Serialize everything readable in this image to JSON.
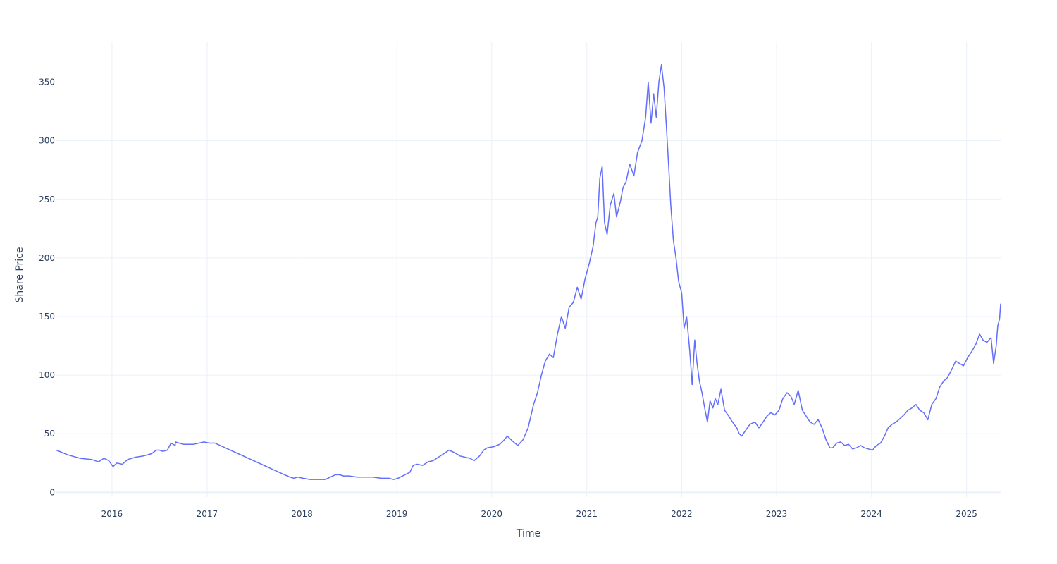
{
  "colors": {
    "line": "#636efa",
    "grid": "#ebf0f8",
    "text": "#2a3f5f"
  },
  "chart_data": {
    "type": "line",
    "title": "",
    "xlabel": "Time",
    "ylabel": "Share Price",
    "grid": true,
    "legend": "none",
    "xlim": [
      "2015-06-01",
      "2025-05-12"
    ],
    "ylim": [
      -4,
      384
    ],
    "x_ticks": [
      "2016",
      "2017",
      "2018",
      "2019",
      "2020",
      "2021",
      "2022",
      "2023",
      "2024",
      "2025"
    ],
    "y_ticks": [
      "0",
      "50",
      "100",
      "150",
      "200",
      "250",
      "300",
      "350"
    ],
    "series": [
      {
        "x": [
          "2015-06-01",
          "2015-07-15",
          "2015-09-01",
          "2015-10-15",
          "2015-11-10",
          "2015-12-01",
          "2015-12-20",
          "2016-01-05",
          "2016-01-20",
          "2016-02-10",
          "2016-03-01",
          "2016-04-01",
          "2016-05-01",
          "2016-06-01",
          "2016-06-20",
          "2016-07-01",
          "2016-07-15",
          "2016-08-01",
          "2016-08-15",
          "2016-08-31",
          "2016-09-01",
          "2016-09-15",
          "2016-10-01",
          "2016-10-20",
          "2016-11-10",
          "2016-12-01",
          "2016-12-20",
          "2017-01-10",
          "2017-02-01",
          "2017-02-10",
          "2017-10-26",
          "2017-11-05",
          "2017-11-15",
          "2017-12-01",
          "2017-12-15",
          "2018-01-05",
          "2018-02-01",
          "2018-03-01",
          "2018-04-01",
          "2018-04-20",
          "2018-05-10",
          "2018-05-25",
          "2018-06-10",
          "2018-07-01",
          "2018-08-01",
          "2018-09-01",
          "2018-10-01",
          "2018-11-01",
          "2018-12-01",
          "2018-12-20",
          "2019-01-05",
          "2019-02-01",
          "2019-02-20",
          "2019-03-05",
          "2019-03-20",
          "2019-04-10",
          "2019-05-01",
          "2019-05-20",
          "2019-06-10",
          "2019-07-01",
          "2019-07-20",
          "2019-08-10",
          "2019-09-01",
          "2019-09-20",
          "2019-10-10",
          "2019-10-25",
          "2019-11-15",
          "2019-12-01",
          "2019-12-15",
          "2020-01-10",
          "2020-02-01",
          "2020-02-15",
          "2020-03-01",
          "2020-03-20",
          "2020-04-10",
          "2020-05-01",
          "2020-05-20",
          "2020-06-10",
          "2020-06-25",
          "2020-07-10",
          "2020-07-25",
          "2020-08-10",
          "2020-08-25",
          "2020-09-10",
          "2020-09-25",
          "2020-10-10",
          "2020-10-25",
          "2020-11-10",
          "2020-11-25",
          "2020-12-10",
          "2020-12-25",
          "2021-01-10",
          "2021-01-25",
          "2021-02-05",
          "2021-02-12",
          "2021-02-20",
          "2021-03-01",
          "2021-03-10",
          "2021-03-20",
          "2021-04-01",
          "2021-04-15",
          "2021-04-25",
          "2021-05-10",
          "2021-05-20",
          "2021-06-01",
          "2021-06-15",
          "2021-07-01",
          "2021-07-15",
          "2021-08-01",
          "2021-08-15",
          "2021-08-25",
          "2021-09-05",
          "2021-09-15",
          "2021-09-25",
          "2021-10-05",
          "2021-10-15",
          "2021-10-20",
          "2021-10-25",
          "2021-11-01",
          "2021-11-10",
          "2021-11-20",
          "2021-11-30",
          "2021-12-10",
          "2021-12-20",
          "2022-01-01",
          "2022-01-10",
          "2022-01-20",
          "2022-02-01",
          "2022-02-10",
          "2022-02-20",
          "2022-03-01",
          "2022-03-10",
          "2022-03-20",
          "2022-04-01",
          "2022-04-10",
          "2022-04-20",
          "2022-05-01",
          "2022-05-10",
          "2022-05-20",
          "2022-06-01",
          "2022-06-15",
          "2022-07-01",
          "2022-07-15",
          "2022-08-01",
          "2022-08-10",
          "2022-08-20",
          "2022-09-01",
          "2022-09-20",
          "2022-10-10",
          "2022-10-25",
          "2022-11-10",
          "2022-11-25",
          "2022-12-10",
          "2022-12-25",
          "2023-01-10",
          "2023-01-25",
          "2023-02-10",
          "2023-02-25",
          "2023-03-10",
          "2023-03-25",
          "2023-04-10",
          "2023-04-25",
          "2023-05-10",
          "2023-05-25",
          "2023-06-10",
          "2023-06-25",
          "2023-07-10",
          "2023-07-25",
          "2023-08-05",
          "2023-08-20",
          "2023-09-05",
          "2023-09-20",
          "2023-10-05",
          "2023-10-20",
          "2023-11-05",
          "2023-11-20",
          "2023-12-05",
          "2023-12-20",
          "2024-01-05",
          "2024-01-20",
          "2024-02-05",
          "2024-02-20",
          "2024-03-05",
          "2024-03-20",
          "2024-04-05",
          "2024-04-20",
          "2024-05-05",
          "2024-05-20",
          "2024-06-05",
          "2024-06-20",
          "2024-07-05",
          "2024-07-20",
          "2024-08-05",
          "2024-08-20",
          "2024-09-05",
          "2024-09-20",
          "2024-10-05",
          "2024-10-20",
          "2024-11-05",
          "2024-11-20",
          "2024-12-05",
          "2024-12-20",
          "2025-01-05",
          "2025-01-20",
          "2025-02-05",
          "2025-02-20",
          "2025-03-05",
          "2025-03-20",
          "2025-04-05",
          "2025-04-15",
          "2025-04-25",
          "2025-05-01",
          "2025-05-08",
          "2025-05-12"
        ],
        "y": [
          36,
          32,
          29,
          28,
          26,
          29,
          27,
          22,
          25,
          24,
          28,
          30,
          31,
          33,
          36,
          36,
          35,
          36,
          42,
          40,
          43,
          42,
          41,
          41,
          41,
          42,
          43,
          42,
          42,
          41,
          15,
          14,
          13,
          12,
          13,
          12,
          11,
          11,
          11,
          13,
          15,
          15,
          14,
          14,
          13,
          13,
          13,
          12,
          12,
          11,
          12,
          15,
          17,
          23,
          24,
          23,
          26,
          27,
          30,
          33,
          36,
          34,
          31,
          30,
          29,
          27,
          31,
          36,
          38,
          39,
          41,
          44,
          48,
          44,
          40,
          45,
          55,
          75,
          85,
          100,
          112,
          118,
          115,
          135,
          150,
          140,
          158,
          162,
          175,
          165,
          182,
          195,
          210,
          230,
          235,
          268,
          278,
          230,
          220,
          245,
          255,
          235,
          248,
          260,
          265,
          280,
          270,
          290,
          300,
          320,
          350,
          315,
          340,
          320,
          350,
          365,
          355,
          345,
          320,
          285,
          245,
          215,
          200,
          180,
          170,
          140,
          150,
          120,
          92,
          130,
          110,
          95,
          85,
          70,
          60,
          78,
          72,
          80,
          75,
          88,
          70,
          65,
          60,
          55,
          50,
          48,
          52,
          58,
          60,
          55,
          60,
          65,
          68,
          66,
          70,
          80,
          85,
          82,
          75,
          87,
          70,
          65,
          60,
          58,
          62,
          55,
          45,
          38,
          38,
          42,
          43,
          40,
          41,
          37,
          38,
          40,
          38,
          37,
          36,
          40,
          42,
          48,
          55,
          58,
          60,
          63,
          66,
          70,
          72,
          75,
          70,
          68,
          62,
          75,
          80,
          90,
          95,
          98,
          105,
          112,
          110,
          108,
          115,
          120,
          126,
          135,
          130,
          128,
          132,
          110,
          125,
          142,
          148,
          161
        ]
      }
    ]
  }
}
